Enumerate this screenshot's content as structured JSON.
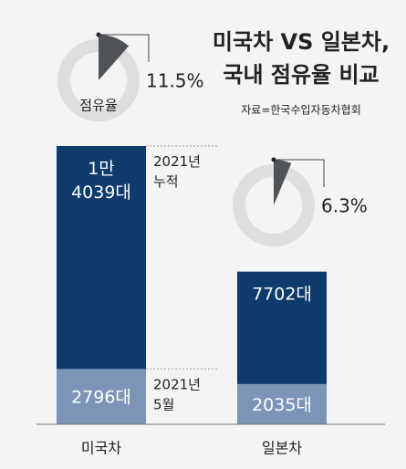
{
  "chart_data": {
    "type": "bar",
    "title": "미국차 VS 일본차,\n국내 점유율 비교",
    "source": "자료=한국수입자동차협회",
    "categories": [
      "미국차",
      "일본차"
    ],
    "series": [
      {
        "name": "2021년\n누적",
        "color": "#0e3a6c",
        "values": [
          14039,
          7702
        ],
        "value_labels": [
          "1만\n4039대",
          "7702대"
        ]
      },
      {
        "name": "2021년\n5월",
        "color": "#7c94b6",
        "values": [
          2796,
          2035
        ],
        "value_labels": [
          "2796대",
          "2035대"
        ]
      }
    ],
    "share": {
      "label": "점유율",
      "color": "#4f5358",
      "values": [
        11.5,
        6.3
      ],
      "value_labels": [
        "11.5%",
        "6.3%"
      ]
    }
  }
}
